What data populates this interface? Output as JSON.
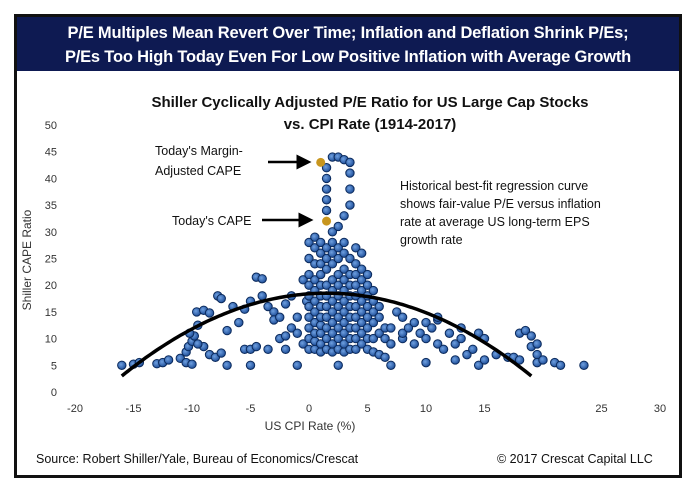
{
  "header": {
    "line1": "P/E Multiples Mean Revert Over Time; Inflation and Deflation Shrink P/Es;",
    "line2": "P/Es Too High Today Even For Low Positive Inflation with Average Growth"
  },
  "footer": {
    "source": "Source: Robert Shiller/Yale, Bureau of Economics/Crescat",
    "copyright": "© 2017 Crescat Capital LLC"
  },
  "chart_data": {
    "type": "scatter",
    "title_line1": "Shiller Cyclically Adjusted P/E Ratio for US Large Cap Stocks",
    "title_line2": "vs. CPI Rate (1914-2017)",
    "xlabel": "US CPI Rate (%)",
    "ylabel": "Shiller CAPE Ratio",
    "xlim": [
      -20,
      30
    ],
    "ylim": [
      0,
      50
    ],
    "xticks": [
      "-20",
      "-15",
      "-10",
      "-5",
      "0",
      "5",
      "10",
      "15",
      "",
      "25",
      "30"
    ],
    "yticks": [
      "0",
      "5",
      "10",
      "15",
      "20",
      "25",
      "30",
      "35",
      "40",
      "45",
      "50"
    ],
    "grid": false,
    "colors": {
      "points": "#2a64b4",
      "point_edge": "#0b2a5c",
      "highlight": "#c8961e",
      "curve": "#000000",
      "header_bg": "#0e1a52"
    },
    "points": [
      [
        -16,
        5
      ],
      [
        -15,
        5.2
      ],
      [
        -14.5,
        5.5
      ],
      [
        -13,
        5.3
      ],
      [
        -12.5,
        5.5
      ],
      [
        -12,
        6
      ],
      [
        -11,
        6.3
      ],
      [
        -10.5,
        5.5
      ],
      [
        -10,
        5.2
      ],
      [
        -10.5,
        7.5
      ],
      [
        -10.3,
        8.5
      ],
      [
        -10,
        9.5
      ],
      [
        -9.8,
        10.5
      ],
      [
        -10.2,
        11
      ],
      [
        -9.5,
        12.5
      ],
      [
        -9.6,
        15
      ],
      [
        -9,
        15.3
      ],
      [
        -8.5,
        14.8
      ],
      [
        -9,
        8.5
      ],
      [
        -9.5,
        9
      ],
      [
        -8.5,
        7
      ],
      [
        -8,
        6.5
      ],
      [
        -7.5,
        7.3
      ],
      [
        -7.8,
        18
      ],
      [
        -7.5,
        17.5
      ],
      [
        -7,
        11.5
      ],
      [
        -7,
        5
      ],
      [
        -6.5,
        16
      ],
      [
        -6,
        13
      ],
      [
        -5.5,
        15.5
      ],
      [
        -5,
        17
      ],
      [
        -5.5,
        8
      ],
      [
        -5,
        8
      ],
      [
        -4.5,
        8.5
      ],
      [
        -5,
        5
      ],
      [
        -4.5,
        21.5
      ],
      [
        -4,
        21.2
      ],
      [
        -4,
        18
      ],
      [
        -3.5,
        16
      ],
      [
        -3,
        15
      ],
      [
        -3,
        13.5
      ],
      [
        -2.5,
        14
      ],
      [
        -2.5,
        10
      ],
      [
        -2,
        10.5
      ],
      [
        -2,
        8
      ],
      [
        -3.5,
        8
      ],
      [
        -2,
        16.5
      ],
      [
        -1.5,
        18
      ],
      [
        -1.5,
        12
      ],
      [
        -1,
        5
      ],
      [
        -1,
        14
      ],
      [
        -1,
        11
      ],
      [
        -0.5,
        21
      ],
      [
        -0.5,
        9
      ],
      [
        -0.2,
        17
      ],
      [
        0,
        8
      ],
      [
        0,
        10
      ],
      [
        0,
        12
      ],
      [
        0,
        14
      ],
      [
        0,
        16
      ],
      [
        0,
        18
      ],
      [
        0,
        20
      ],
      [
        0,
        22
      ],
      [
        0,
        25
      ],
      [
        0,
        28
      ],
      [
        0.5,
        8
      ],
      [
        0.5,
        9.5
      ],
      [
        0.5,
        11
      ],
      [
        0.5,
        13
      ],
      [
        0.5,
        15
      ],
      [
        0.5,
        17
      ],
      [
        0.5,
        19
      ],
      [
        0.5,
        21
      ],
      [
        0.5,
        24
      ],
      [
        0.5,
        27
      ],
      [
        0.5,
        29
      ],
      [
        1,
        7.5
      ],
      [
        1,
        9
      ],
      [
        1,
        11
      ],
      [
        1,
        12.5
      ],
      [
        1,
        14
      ],
      [
        1,
        16
      ],
      [
        1,
        18
      ],
      [
        1,
        20
      ],
      [
        1,
        22
      ],
      [
        1,
        24
      ],
      [
        1,
        26
      ],
      [
        1,
        28
      ],
      [
        1.5,
        8
      ],
      [
        1.5,
        10
      ],
      [
        1.5,
        12
      ],
      [
        1.5,
        14
      ],
      [
        1.5,
        16
      ],
      [
        1.5,
        18
      ],
      [
        1.5,
        20
      ],
      [
        1.5,
        23
      ],
      [
        1.5,
        25
      ],
      [
        1.5,
        27
      ],
      [
        1.5,
        34
      ],
      [
        1.5,
        36
      ],
      [
        1.5,
        38
      ],
      [
        1.5,
        40
      ],
      [
        1.5,
        42
      ],
      [
        2,
        7.5
      ],
      [
        2,
        9
      ],
      [
        2,
        11
      ],
      [
        2,
        13
      ],
      [
        2,
        15
      ],
      [
        2,
        17
      ],
      [
        2,
        19
      ],
      [
        2,
        21
      ],
      [
        2,
        24
      ],
      [
        2,
        26
      ],
      [
        2,
        28
      ],
      [
        2,
        30
      ],
      [
        2,
        44
      ],
      [
        2.5,
        5
      ],
      [
        2.5,
        8
      ],
      [
        2.5,
        10
      ],
      [
        2.5,
        12
      ],
      [
        2.5,
        14
      ],
      [
        2.5,
        16
      ],
      [
        2.5,
        18
      ],
      [
        2.5,
        20
      ],
      [
        2.5,
        22
      ],
      [
        2.5,
        25
      ],
      [
        2.5,
        27
      ],
      [
        2.5,
        31
      ],
      [
        2.5,
        44
      ],
      [
        3,
        7.5
      ],
      [
        3,
        9
      ],
      [
        3,
        11
      ],
      [
        3,
        13
      ],
      [
        3,
        15
      ],
      [
        3,
        17
      ],
      [
        3,
        19
      ],
      [
        3,
        21
      ],
      [
        3,
        23
      ],
      [
        3,
        26
      ],
      [
        3,
        28
      ],
      [
        3,
        33
      ],
      [
        3,
        43.5
      ],
      [
        3.5,
        8
      ],
      [
        3.5,
        10
      ],
      [
        3.5,
        12
      ],
      [
        3.5,
        14
      ],
      [
        3.5,
        16
      ],
      [
        3.5,
        18
      ],
      [
        3.5,
        20
      ],
      [
        3.5,
        22
      ],
      [
        3.5,
        25
      ],
      [
        3.5,
        35
      ],
      [
        3.5,
        38
      ],
      [
        3.5,
        41
      ],
      [
        3.5,
        43
      ],
      [
        4,
        8
      ],
      [
        4,
        10
      ],
      [
        4,
        12
      ],
      [
        4,
        14
      ],
      [
        4,
        16
      ],
      [
        4,
        18
      ],
      [
        4,
        20
      ],
      [
        4,
        22
      ],
      [
        4,
        24
      ],
      [
        4,
        27
      ],
      [
        4.5,
        9
      ],
      [
        4.5,
        11
      ],
      [
        4.5,
        13
      ],
      [
        4.5,
        15
      ],
      [
        4.5,
        17
      ],
      [
        4.5,
        19
      ],
      [
        4.5,
        21
      ],
      [
        4.5,
        23
      ],
      [
        4.5,
        26
      ],
      [
        5,
        8
      ],
      [
        5,
        10
      ],
      [
        5,
        12
      ],
      [
        5,
        14
      ],
      [
        5,
        16
      ],
      [
        5,
        18
      ],
      [
        5,
        20
      ],
      [
        5,
        22
      ],
      [
        5.5,
        7.5
      ],
      [
        5.5,
        10
      ],
      [
        5.5,
        13
      ],
      [
        5.5,
        15
      ],
      [
        5.5,
        17
      ],
      [
        5.5,
        19
      ],
      [
        6,
        7
      ],
      [
        6,
        11
      ],
      [
        6,
        14
      ],
      [
        6,
        16
      ],
      [
        6.5,
        6.5
      ],
      [
        6.5,
        10
      ],
      [
        6.5,
        12
      ],
      [
        7,
        5
      ],
      [
        7,
        9
      ],
      [
        7,
        12
      ],
      [
        7.5,
        15
      ],
      [
        8,
        14
      ],
      [
        8,
        10
      ],
      [
        8,
        11
      ],
      [
        8.5,
        12
      ],
      [
        9,
        9
      ],
      [
        9,
        13
      ],
      [
        9.5,
        11
      ],
      [
        10,
        5.5
      ],
      [
        10,
        10
      ],
      [
        10,
        13
      ],
      [
        10.5,
        12
      ],
      [
        11,
        9
      ],
      [
        11,
        13.5
      ],
      [
        11,
        14
      ],
      [
        11.5,
        8
      ],
      [
        12,
        11
      ],
      [
        12.5,
        6
      ],
      [
        12.5,
        9
      ],
      [
        13,
        10
      ],
      [
        13,
        12
      ],
      [
        13.5,
        7
      ],
      [
        14,
        8
      ],
      [
        14.5,
        11
      ],
      [
        14.5,
        5
      ],
      [
        15,
        6
      ],
      [
        15,
        10
      ],
      [
        16,
        7
      ],
      [
        17,
        6.5
      ],
      [
        17.5,
        6.5
      ],
      [
        18,
        6
      ],
      [
        18,
        11
      ],
      [
        18.5,
        11.5
      ],
      [
        19,
        10.5
      ],
      [
        19,
        8.5
      ],
      [
        19.5,
        9
      ],
      [
        19.5,
        7
      ],
      [
        19.5,
        5.5
      ],
      [
        20,
        6
      ],
      [
        21,
        5.5
      ],
      [
        21.5,
        5
      ],
      [
        23.5,
        5
      ]
    ],
    "highlighted_points": [
      {
        "label": "Today's CAPE",
        "x": 1.5,
        "y": 32
      },
      {
        "label_line1": "Today's Margin-",
        "label_line2": "Adjusted CAPE",
        "x": 1,
        "y": 43
      }
    ],
    "regression_curve": {
      "type": "quadratic",
      "vertex_x": 1.5,
      "vertex_y": 18.5,
      "x_range": [
        -16,
        19
      ],
      "end_y": 3
    },
    "annotation_lines": [
      "Historical best-fit regression curve",
      "shows fair-value P/E versus inflation",
      "rate at average US long-term EPS",
      "growth rate"
    ]
  }
}
